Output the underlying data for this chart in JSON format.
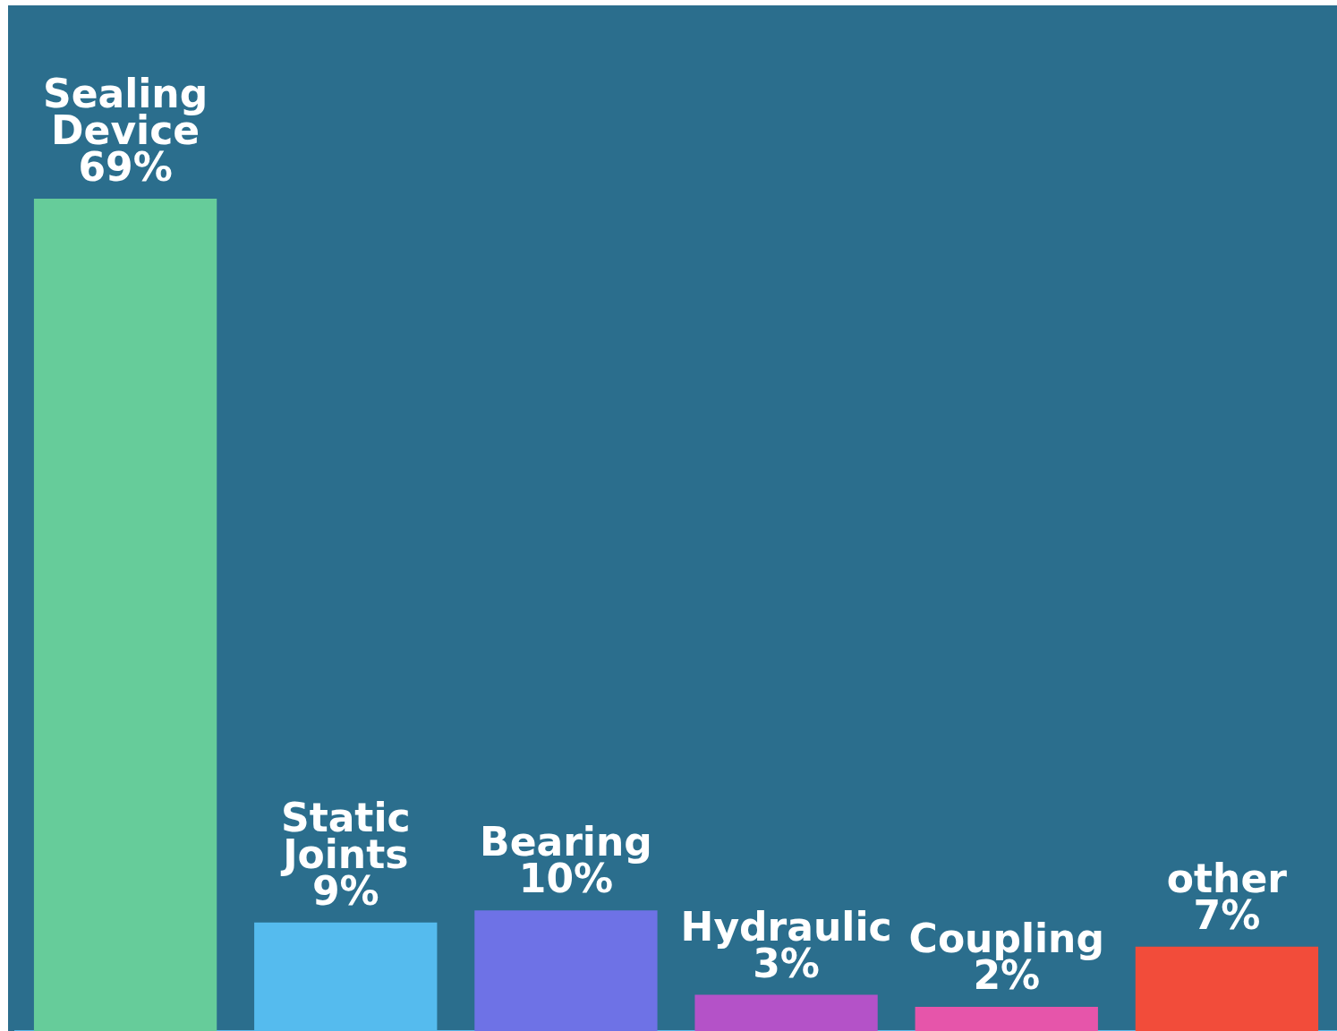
{
  "chart_data": {
    "type": "bar",
    "categories": [
      "Sealing Device",
      "Static Joints",
      "Bearing",
      "Hydraulic",
      "Coupling",
      "other"
    ],
    "values": [
      69,
      9,
      10,
      3,
      2,
      7
    ],
    "colors": [
      "#66cc9a",
      "#55bbee",
      "#6e72e6",
      "#b452c8",
      "#e655aa",
      "#f24c3a"
    ],
    "value_labels": [
      "69%",
      "9%",
      "10%",
      "3%",
      "2%",
      "7%"
    ]
  }
}
